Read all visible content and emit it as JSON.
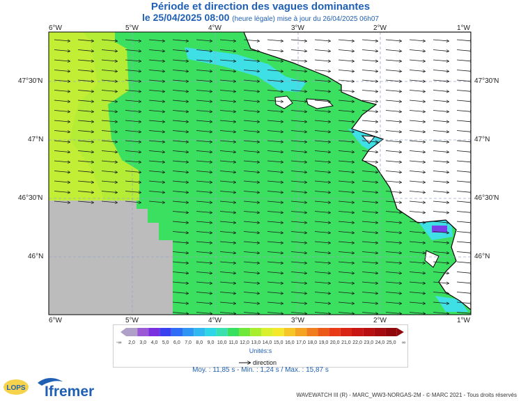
{
  "title": "Période et direction des vagues dominantes",
  "subtitle_date": "le 25/04/2025 08:00",
  "subtitle_note": "(heure légale) mise à jour du 26/04/2025 06h07",
  "lon_ticks": [
    "6°W",
    "5°W",
    "4°W",
    "3°W",
    "2°W",
    "1°W"
  ],
  "lat_ticks": [
    "47°30'N",
    "47°N",
    "46°30'N",
    "46°N"
  ],
  "legend": {
    "low_label": "-∞",
    "high_label": "∞",
    "values": [
      "2,0",
      "3,0",
      "4,0",
      "5,0",
      "6,0",
      "7,0",
      "8,0",
      "9,0",
      "10,0",
      "11,0",
      "12,0",
      "13,0",
      "14,0",
      "15,0",
      "16,0",
      "17,0",
      "18,0",
      "19,0",
      "20,0",
      "21,0",
      "22,0",
      "23,0",
      "24,0",
      "25,0"
    ],
    "colors": [
      "#b0a0c8",
      "#9b59d6",
      "#7a2fe0",
      "#3a3ff0",
      "#2f6cf5",
      "#2f95f5",
      "#31b8f0",
      "#2fd6e8",
      "#3be0b0",
      "#38e060",
      "#6fe83a",
      "#a8ee2e",
      "#d8f02e",
      "#f4e82c",
      "#f6c629",
      "#f5a323",
      "#f07e1e",
      "#ec5a1a",
      "#e83a17",
      "#d92614",
      "#c81712",
      "#b80f10",
      "#a40b0e",
      "#90080c"
    ],
    "unit": "Unités:s",
    "direction_label": "direction"
  },
  "stats": "Moy. : 11,85 s   -   Min. : 1,24 s / Max. : 15,87 s",
  "footer": "WAVEWATCH III (R) - MARC_WW3-NORGAS-2M - © MARC 2021 - Tous droits réservés",
  "brand": {
    "ifremer": "Ifremer",
    "lops": "LOPS"
  },
  "map_colors": {
    "period_13s": "#3be060",
    "period_14s": "#8ee83a",
    "period_15s": "#c6ef34",
    "period_11s": "#3ee0e6",
    "no_data": "#bcbcbc",
    "land": "#ffffff",
    "grid": "#9aa6c8"
  }
}
